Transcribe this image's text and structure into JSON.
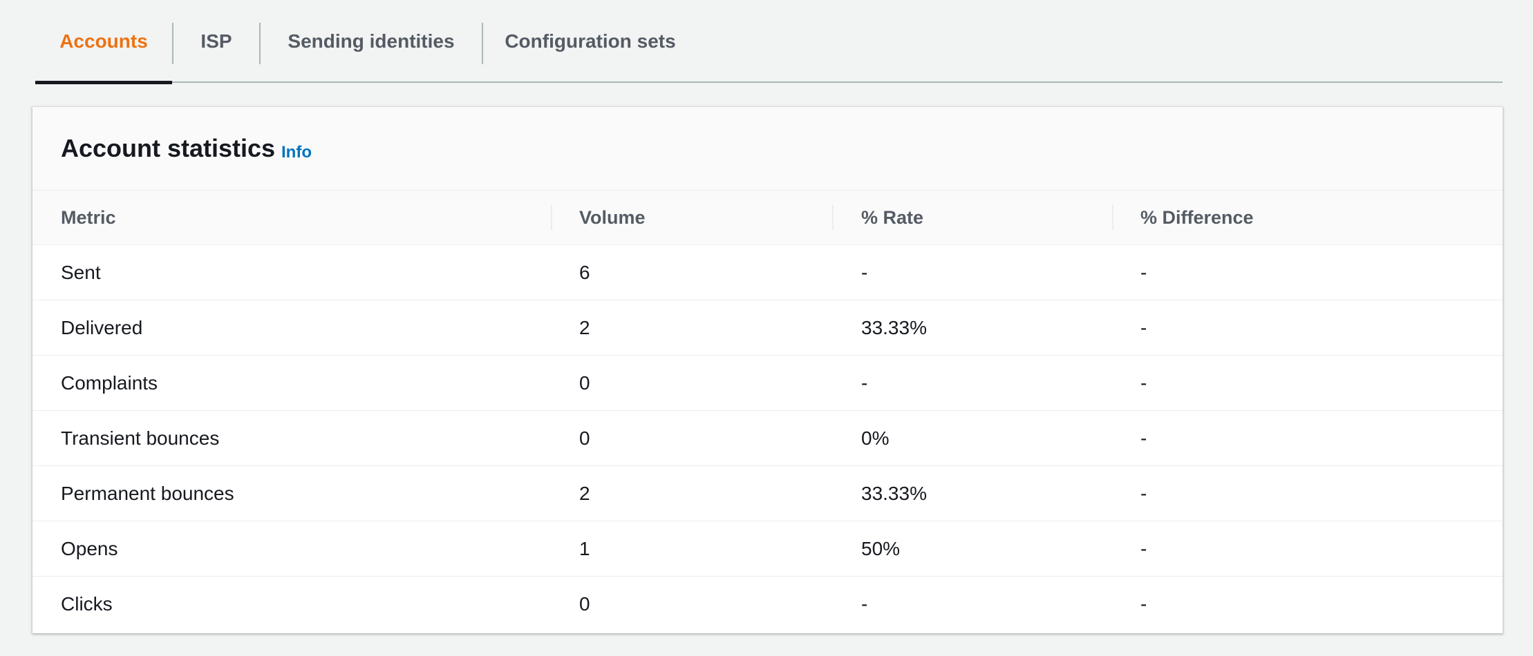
{
  "tabs": [
    {
      "label": "Accounts",
      "active": true
    },
    {
      "label": "ISP",
      "active": false
    },
    {
      "label": "Sending identities",
      "active": false
    },
    {
      "label": "Configuration sets",
      "active": false
    }
  ],
  "colors": {
    "active_tab": "#ec7211",
    "link": "#0073bb",
    "text": "#16191f",
    "muted": "#545b64"
  },
  "panel": {
    "title": "Account statistics",
    "info_label": "Info"
  },
  "table": {
    "columns": [
      "Metric",
      "Volume",
      "% Rate",
      "% Difference"
    ],
    "rows": [
      {
        "metric": "Sent",
        "volume": "6",
        "rate": "-",
        "difference": "-"
      },
      {
        "metric": "Delivered",
        "volume": "2",
        "rate": "33.33%",
        "difference": "-"
      },
      {
        "metric": "Complaints",
        "volume": "0",
        "rate": "-",
        "difference": "-"
      },
      {
        "metric": "Transient bounces",
        "volume": "0",
        "rate": "0%",
        "difference": "-"
      },
      {
        "metric": "Permanent bounces",
        "volume": "2",
        "rate": "33.33%",
        "difference": "-"
      },
      {
        "metric": "Opens",
        "volume": "1",
        "rate": "50%",
        "difference": "-"
      },
      {
        "metric": "Clicks",
        "volume": "0",
        "rate": "-",
        "difference": "-"
      }
    ]
  }
}
